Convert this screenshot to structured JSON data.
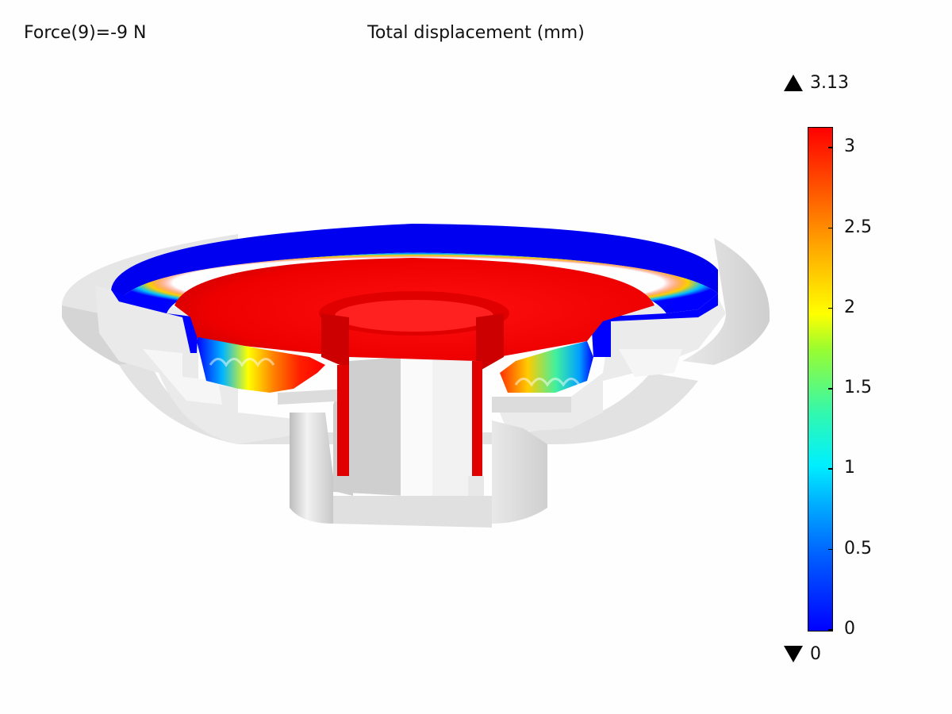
{
  "parameter_label": "Force(9)=-9 N",
  "title": "Total displacement (mm)",
  "colorbar": {
    "max_label": "3.13",
    "min_label": "0",
    "ticks": [
      "3",
      "2.5",
      "2",
      "1.5",
      "1",
      "0.5",
      "0"
    ],
    "tick_values": [
      3,
      2.5,
      2,
      1.5,
      1,
      0.5,
      0
    ],
    "range": [
      0,
      3.13
    ],
    "colormap": "rainbow",
    "colors": {
      "low": "#0000ff",
      "mid": "#ffff00",
      "high": "#ff0000"
    }
  },
  "model": {
    "description_icon": "loudspeaker-cutaway-3d-icon",
    "base_color": "#e6e6e6"
  }
}
